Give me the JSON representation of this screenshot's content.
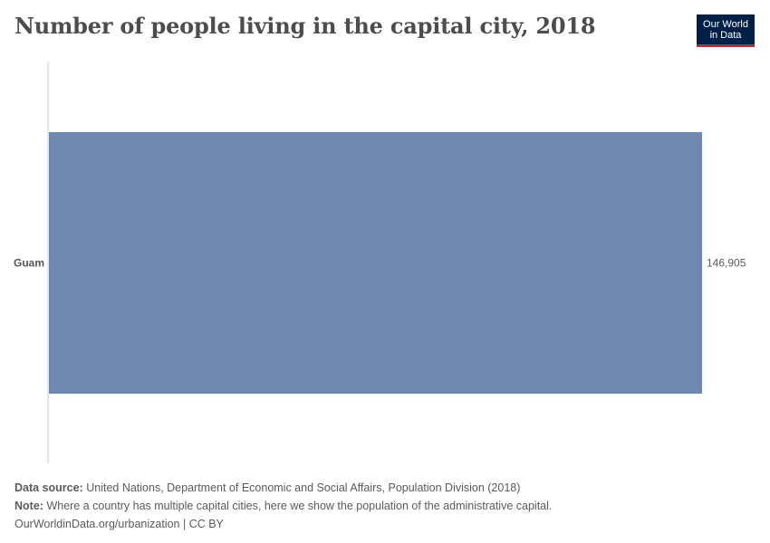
{
  "header": {
    "title": "Number of people living in the capital city, 2018",
    "logo_line1": "Our World",
    "logo_line2": "in Data"
  },
  "colors": {
    "bar": "#6f88b0",
    "axis": "#cccccc",
    "logo_bg": "#002147",
    "logo_accent": "#ce261e"
  },
  "chart_data": {
    "type": "bar",
    "orientation": "horizontal",
    "categories": [
      "Guam"
    ],
    "values": [
      146905
    ],
    "value_labels": [
      "146,905"
    ],
    "xlim": [
      0,
      146905
    ],
    "grid": false,
    "legend": "none"
  },
  "footer": {
    "source_label": "Data source:",
    "source_text": "United Nations, Department of Economic and Social Affairs, Population Division (2018)",
    "note_label": "Note:",
    "note_text": "Where a country has multiple capital cities, here we show the population of the administrative capital.",
    "link_text": "OurWorldinData.org/urbanization | CC BY"
  }
}
